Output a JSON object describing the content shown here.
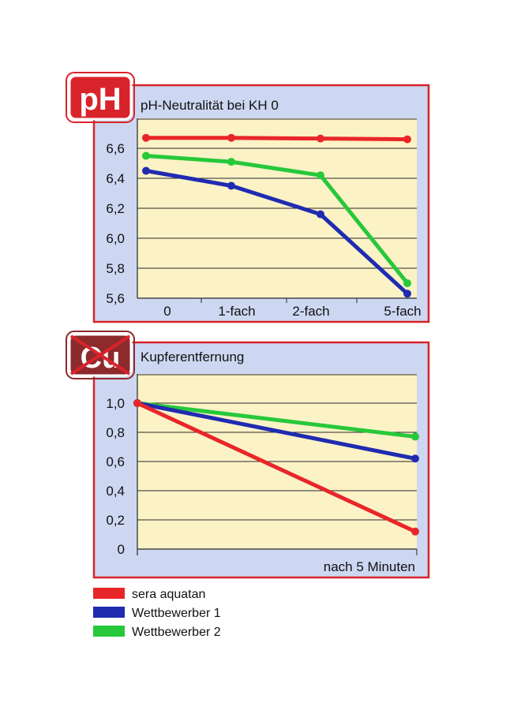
{
  "chart_data": [
    {
      "type": "line",
      "badge": "pH",
      "title": "pH-Neutralität bei KH 0",
      "categories": [
        "0",
        "1-fach",
        "2-fach",
        "5-fach"
      ],
      "y_ticks": [
        "5,6",
        "5,8",
        "6,0",
        "6,2",
        "6,4",
        "6,6"
      ],
      "ylim": [
        5.6,
        6.8
      ],
      "grid": true,
      "series": [
        {
          "name": "sera aquatan",
          "color": "#e8262a",
          "values": [
            6.67,
            6.67,
            6.665,
            6.66
          ]
        },
        {
          "name": "Wettbewerber 1",
          "color": "#1f2bb0",
          "values": [
            6.45,
            6.35,
            6.16,
            5.63
          ]
        },
        {
          "name": "Wettbewerber 2",
          "color": "#27c83a",
          "values": [
            6.55,
            6.51,
            6.42,
            5.7
          ]
        }
      ]
    },
    {
      "type": "line",
      "badge": "Cu",
      "title": "Kupferentfernung",
      "categories": [
        "",
        "nach 5 Minuten"
      ],
      "y_ticks": [
        "0",
        "0,2",
        "0,4",
        "0,6",
        "0,8",
        "1,0"
      ],
      "ylim": [
        0,
        1.2
      ],
      "grid": true,
      "series": [
        {
          "name": "sera aquatan",
          "color": "#e8262a",
          "values": [
            1.0,
            0.12
          ]
        },
        {
          "name": "Wettbewerber 1",
          "color": "#1f2bb0",
          "values": [
            1.0,
            0.62
          ]
        },
        {
          "name": "Wettbewerber 2",
          "color": "#27c83a",
          "values": [
            1.0,
            0.77
          ]
        }
      ]
    }
  ],
  "legend": [
    {
      "label": "sera aquatan",
      "color": "#e8262a"
    },
    {
      "label": "Wettbewerber 1",
      "color": "#1f2bb0"
    },
    {
      "label": "Wettbewerber 2",
      "color": "#27c83a"
    }
  ],
  "colors": {
    "frame": "#d9232a",
    "panel": "#cdd7f1",
    "plot": "#fbf2c6",
    "grid": "#2a2a2a",
    "cu_badge": "#8d2a2c"
  }
}
